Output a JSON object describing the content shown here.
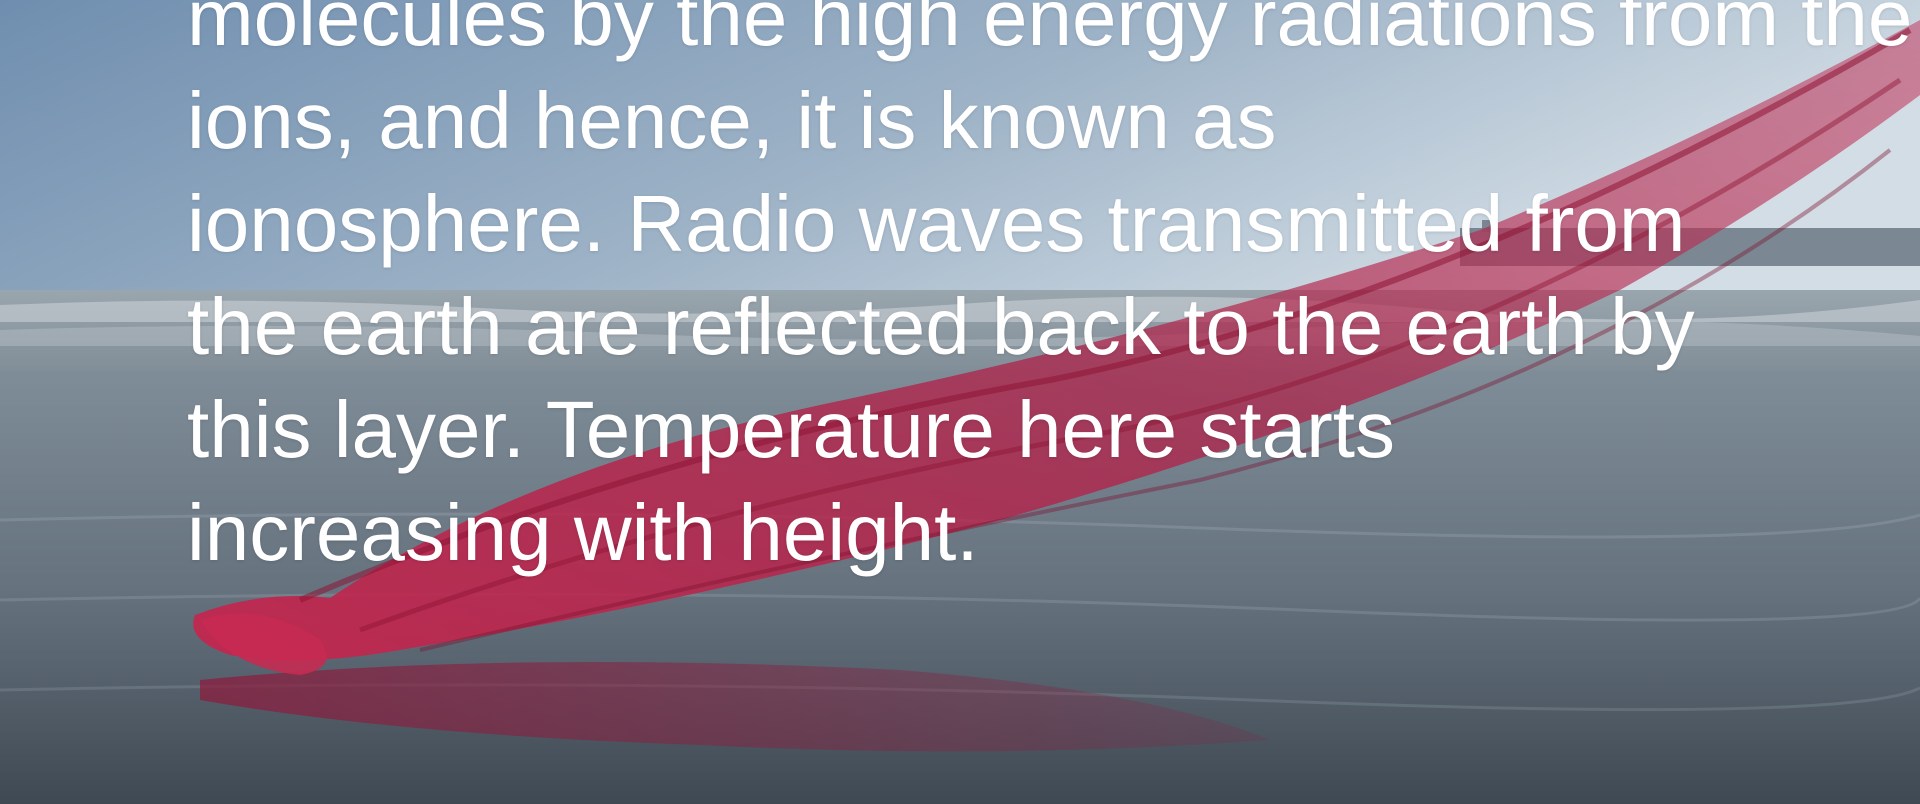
{
  "slide": {
    "background": {
      "sky_top": "#6f8fb0",
      "sky_horizon": "#c4d1dc",
      "sea": "#8f9ca6",
      "sand_dark": "#46525e",
      "fabric": "#b81f45"
    },
    "text_lines": [
      "molecules by the high energy radiations from the sun to form",
      "ions, and hence, it is known as",
      "ionosphere. Radio waves transmitted from",
      "the earth are reflected back to the earth by",
      "this layer. Temperature here starts",
      "increasing with height."
    ]
  }
}
